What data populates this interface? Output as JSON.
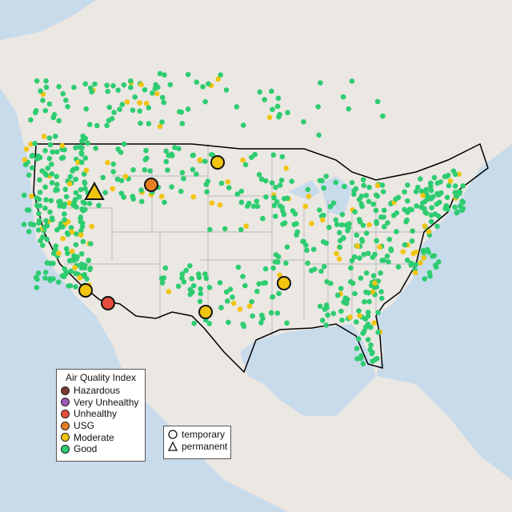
{
  "legend": {
    "title": "Air Quality Index",
    "categories": [
      {
        "label": "Hazardous",
        "color": "#7b3a35"
      },
      {
        "label": "Very Unhealthy",
        "color": "#9b59b6"
      },
      {
        "label": "Unhealthy",
        "color": "#e74c3c"
      },
      {
        "label": "USG",
        "color": "#e67e22"
      },
      {
        "label": "Moderate",
        "color": "#f1c40f"
      },
      {
        "label": "Good",
        "color": "#2ecc71"
      }
    ]
  },
  "shape_legend": {
    "temporary": "temporary",
    "permanent": "permanent"
  },
  "colors": {
    "land": "#ebe7e3",
    "water": "#c8dbeb",
    "border": "#000000",
    "state_lines": "#a9a9a9"
  }
}
